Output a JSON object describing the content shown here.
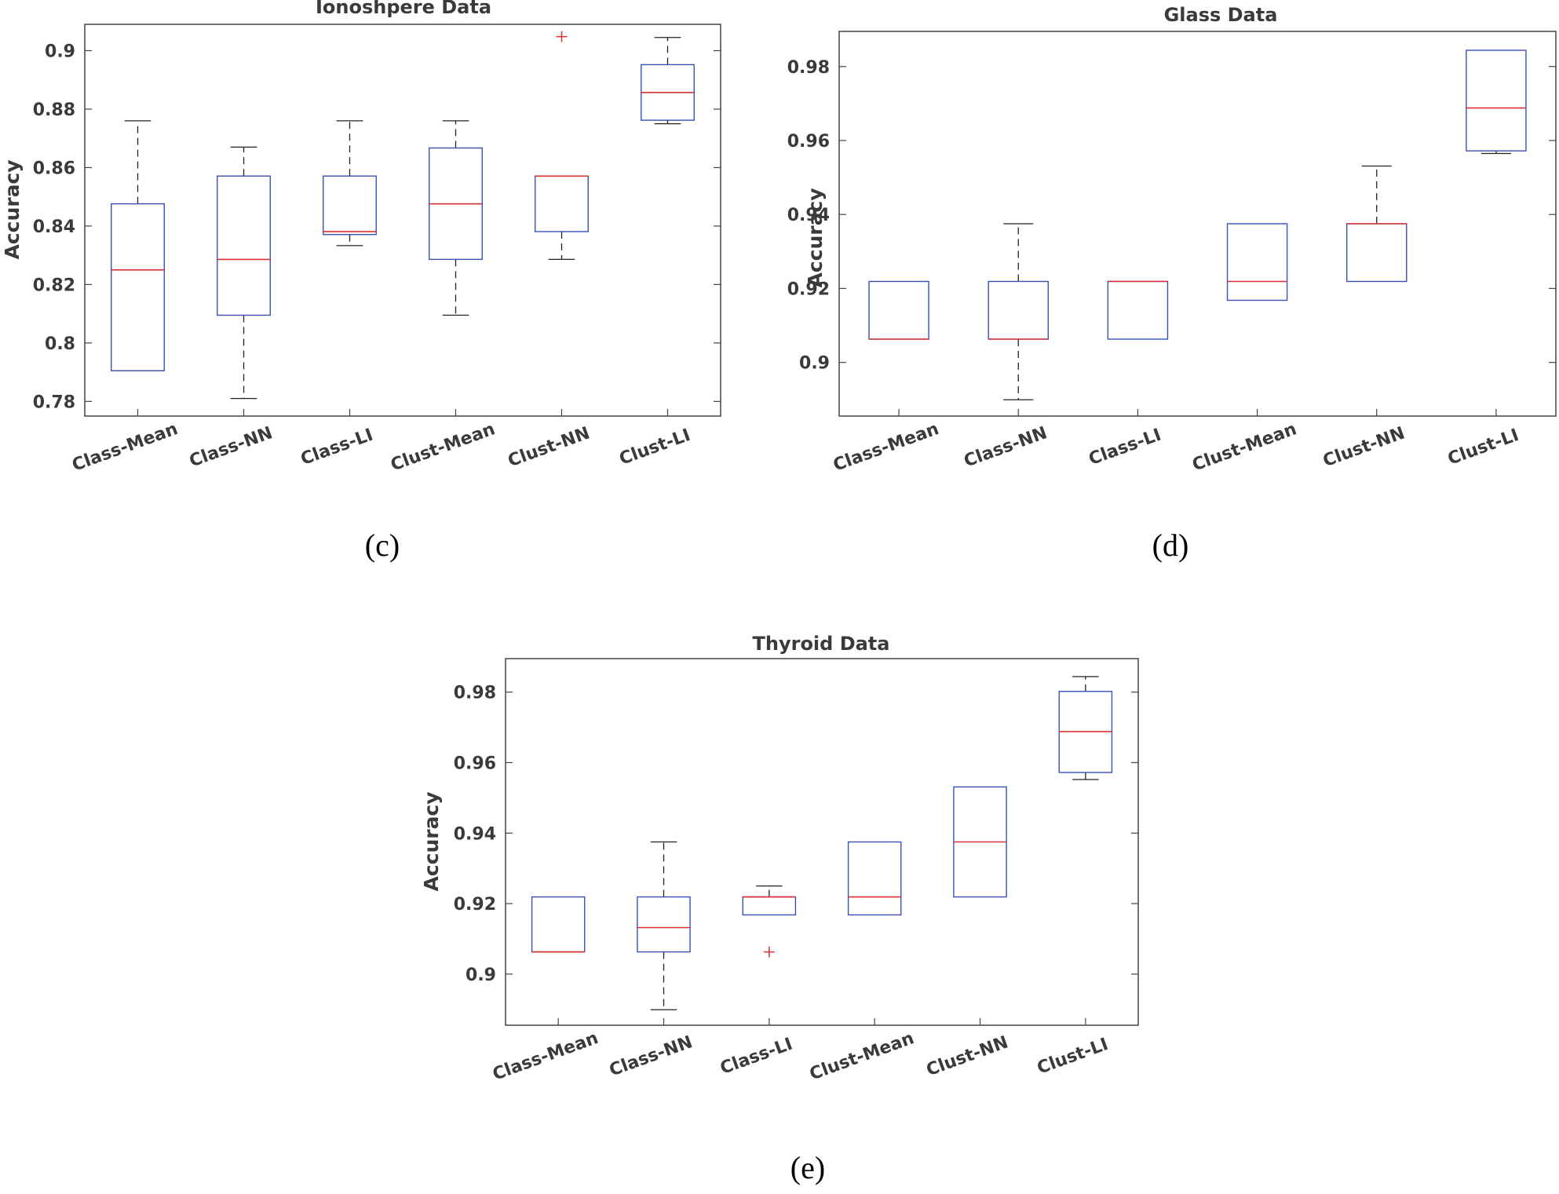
{
  "chart_data": [
    {
      "type": "box",
      "panel": "(c)",
      "title": "Ionoshpere Data",
      "ylabel": "Accuracy",
      "xlabel": "",
      "ylim": [
        0.775,
        0.909
      ],
      "yticks": [
        0.78,
        0.8,
        0.82,
        0.84,
        0.86,
        0.88,
        0.9
      ],
      "ytick_labels": [
        "0.78",
        "0.8",
        "0.82",
        "0.84",
        "0.86",
        "0.88",
        "0.9"
      ],
      "categories": [
        "Class-Mean",
        "Class-NN",
        "Class-LI",
        "Clust-Mean",
        "Clust-NN",
        "Clust-LI"
      ],
      "boxes": [
        {
          "lw": 0.7905,
          "q1": 0.7905,
          "median": 0.825,
          "q3": 0.8476,
          "uw": 0.876,
          "outliers": []
        },
        {
          "lw": 0.781,
          "q1": 0.8095,
          "median": 0.8286,
          "q3": 0.8571,
          "uw": 0.867,
          "outliers": []
        },
        {
          "lw": 0.8333,
          "q1": 0.8371,
          "median": 0.8381,
          "q3": 0.8571,
          "uw": 0.876,
          "outliers": []
        },
        {
          "lw": 0.8095,
          "q1": 0.8286,
          "median": 0.8476,
          "q3": 0.8667,
          "uw": 0.876,
          "outliers": []
        },
        {
          "lw": 0.8286,
          "q1": 0.8381,
          "median": 0.8571,
          "q3": 0.8571,
          "uw": 0.8571,
          "outliers": [
            0.9048
          ]
        },
        {
          "lw": 0.875,
          "q1": 0.8762,
          "median": 0.8857,
          "q3": 0.8952,
          "uw": 0.9045,
          "outliers": []
        }
      ]
    },
    {
      "type": "box",
      "panel": "(d)",
      "title": "Glass Data",
      "ylabel": "Accuracy",
      "xlabel": "",
      "ylim": [
        0.8855,
        0.9895
      ],
      "yticks": [
        0.9,
        0.92,
        0.94,
        0.96,
        0.98
      ],
      "ytick_labels": [
        "0.9",
        "0.92",
        "0.94",
        "0.96",
        "0.98"
      ],
      "categories": [
        "Class-Mean",
        "Class-NN",
        "Class-LI",
        "Clust-Mean",
        "Clust-NN",
        "Clust-LI"
      ],
      "boxes": [
        {
          "lw": 0.9063,
          "q1": 0.9063,
          "median": 0.9063,
          "q3": 0.9219,
          "uw": 0.9219,
          "outliers": []
        },
        {
          "lw": 0.8899,
          "q1": 0.9063,
          "median": 0.9063,
          "q3": 0.9219,
          "uw": 0.9375,
          "outliers": []
        },
        {
          "lw": 0.9063,
          "q1": 0.9063,
          "median": 0.9219,
          "q3": 0.9219,
          "uw": 0.9219,
          "outliers": []
        },
        {
          "lw": 0.9168,
          "q1": 0.9168,
          "median": 0.9219,
          "q3": 0.9375,
          "uw": 0.9375,
          "outliers": []
        },
        {
          "lw": 0.9219,
          "q1": 0.9219,
          "median": 0.9375,
          "q3": 0.9375,
          "uw": 0.9531,
          "outliers": []
        },
        {
          "lw": 0.9565,
          "q1": 0.9572,
          "median": 0.9688,
          "q3": 0.9844,
          "uw": 0.9844,
          "outliers": []
        }
      ]
    },
    {
      "type": "box",
      "panel": "(e)",
      "title": "Thyroid Data",
      "ylabel": "Accuracy",
      "xlabel": "",
      "ylim": [
        0.8855,
        0.9895
      ],
      "yticks": [
        0.9,
        0.92,
        0.94,
        0.96,
        0.98
      ],
      "ytick_labels": [
        "0.9",
        "0.92",
        "0.94",
        "0.96",
        "0.98"
      ],
      "categories": [
        "Class-Mean",
        "Class-NN",
        "Class-LI",
        "Clust-Mean",
        "Clust-NN",
        "Clust-LI"
      ],
      "boxes": [
        {
          "lw": 0.9063,
          "q1": 0.9063,
          "median": 0.9063,
          "q3": 0.9219,
          "uw": 0.9219,
          "outliers": []
        },
        {
          "lw": 0.8899,
          "q1": 0.9063,
          "median": 0.9132,
          "q3": 0.9219,
          "uw": 0.9375,
          "outliers": []
        },
        {
          "lw": 0.9168,
          "q1": 0.9168,
          "median": 0.9219,
          "q3": 0.9219,
          "uw": 0.925,
          "outliers": [
            0.9063
          ]
        },
        {
          "lw": 0.9168,
          "q1": 0.9168,
          "median": 0.9219,
          "q3": 0.9375,
          "uw": 0.9375,
          "outliers": []
        },
        {
          "lw": 0.9219,
          "q1": 0.9219,
          "median": 0.9375,
          "q3": 0.9531,
          "uw": 0.9531,
          "outliers": []
        },
        {
          "lw": 0.9552,
          "q1": 0.9572,
          "median": 0.9688,
          "q3": 0.9802,
          "uw": 0.9844,
          "outliers": []
        }
      ]
    }
  ],
  "colors": {
    "box": "#3a4fb8",
    "median": "#e03030",
    "whisker": "#222222",
    "outlier": "#e03030",
    "axis": "#444444",
    "text": "#3a3a3a"
  }
}
